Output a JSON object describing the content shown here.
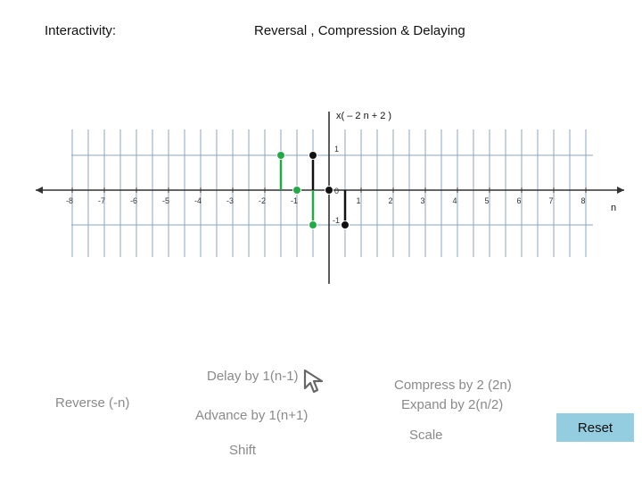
{
  "header": {
    "interactivity_label": "Interactivity:",
    "title": "Reversal , Compression & Delaying"
  },
  "controls": {
    "reverse": "Reverse (-n)",
    "delay": "Delay by 1(n-1)",
    "advance": "Advance by 1(n+1)",
    "shift": "Shift",
    "compress": "Compress by 2 (2n)",
    "expand": "Expand by 2(n/2)",
    "scale": "Scale",
    "reset": "Reset"
  },
  "chart_data": {
    "type": "stem",
    "signal_label": "x( – 2 n + 2 )",
    "xlabel": "n",
    "x_ticks": [
      -8,
      -7,
      -6,
      -5,
      -4,
      -3,
      -2,
      -1,
      1,
      2,
      3,
      4,
      5,
      6,
      7,
      8
    ],
    "y_ticks": [
      "1",
      "0",
      "-1"
    ],
    "xlim": [
      -9,
      9
    ],
    "ylim": [
      -1.3,
      1.3
    ],
    "series": [
      {
        "color": "#22aa44",
        "points": [
          [
            -1.5,
            1
          ],
          [
            -1,
            0
          ],
          [
            -0.5,
            -1
          ]
        ]
      },
      {
        "color": "#111111",
        "points": [
          [
            -0.5,
            1
          ],
          [
            0,
            0
          ],
          [
            0.5,
            -1
          ]
        ]
      }
    ],
    "colors": {
      "green": "#22aa44",
      "black": "#111111",
      "grid": "#8aa6c4"
    }
  }
}
